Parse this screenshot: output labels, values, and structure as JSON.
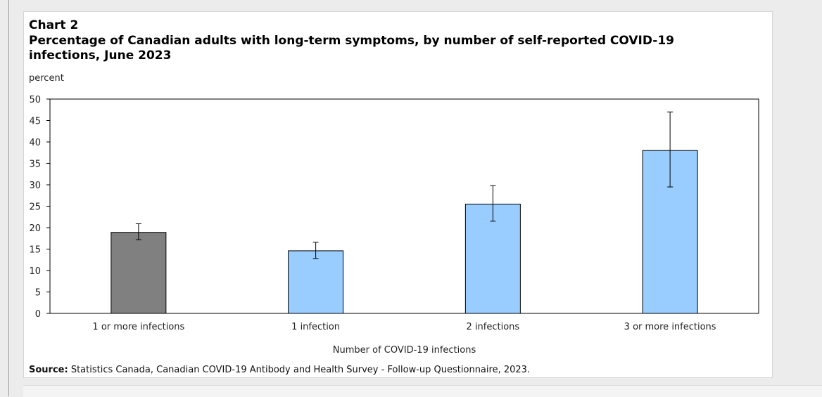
{
  "chart_label": "Chart 2",
  "chart_title": "Percentage of Canadian adults with long-term symptoms, by number of self-reported COVID-19 infections, June 2023",
  "source_label": "Source:",
  "source_text": " Statistics Canada, Canadian COVID-19 Antibody and Health Survey - Follow-up Questionnaire, 2023.",
  "colors": {
    "total_bar": "#808080",
    "category_bar": "#99ccff",
    "bar_border": "#000000"
  },
  "chart_data": {
    "type": "bar",
    "title": "Percentage of Canadian adults with long-term symptoms, by number of self-reported COVID-19 infections, June 2023",
    "xlabel": "Number of COVID-19 infections",
    "ylabel": "percent",
    "ylim": [
      0,
      50
    ],
    "yticks": [
      0,
      5,
      10,
      15,
      20,
      25,
      30,
      35,
      40,
      45,
      50
    ],
    "grid": false,
    "categories": [
      "1 or more infections",
      "1 infection",
      "2 infections",
      "3 or more infections"
    ],
    "values": [
      18.9,
      14.6,
      25.5,
      38.0
    ],
    "error_low": [
      17.2,
      12.8,
      21.5,
      29.5
    ],
    "error_high": [
      20.9,
      16.6,
      29.8,
      47.0
    ]
  }
}
